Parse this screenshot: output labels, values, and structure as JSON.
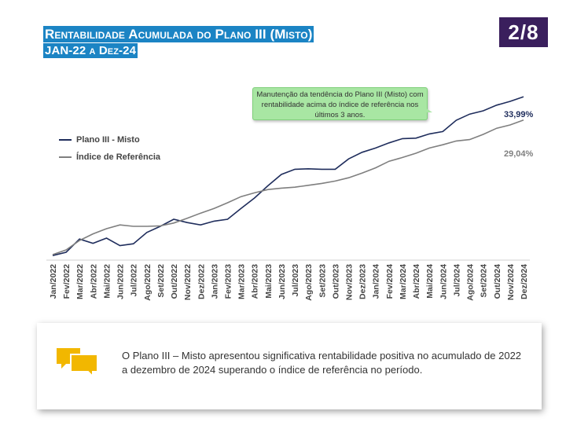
{
  "header": {
    "title": "Rentabilidade Acumulada do Plano III (Misto)",
    "subtitle": "JAN-22 a Dez-24",
    "page_indicator": "2/8"
  },
  "callout": {
    "text": "Manutenção da tendência do Plano III (Misto) com rentabilidade acima do índice de referência nos últimos 3 anos."
  },
  "summary": {
    "text": "O Plano III – Misto apresentou significativa rentabilidade positiva no acumulado de 2022 a dezembro de 2024 superando o índice de referência no período.",
    "icon": "chat-bubbles-icon"
  },
  "colors": {
    "accent_title": "#1b84c4",
    "badge": "#3a1f5d",
    "plano": "#1f2d5c",
    "indice": "#7f7f7f",
    "callout": "#a8e6a3",
    "icon": "#f2b700"
  },
  "chart_data": {
    "type": "line",
    "categories": [
      "Jan/2022",
      "Fev/2022",
      "Mar/2022",
      "Abr/2022",
      "Mai/2022",
      "Jun/2022",
      "Jul/2022",
      "Ago/2022",
      "Set/2022",
      "Out/2022",
      "Nov/2022",
      "Dez/2022",
      "Jan/2023",
      "Fev/2023",
      "Mar/2023",
      "Abr/2023",
      "Mai/2023",
      "Jun/2023",
      "Jul/2023",
      "Ago/2023",
      "Set/2023",
      "Out/2023",
      "Nov/2023",
      "Dez/2023",
      "Jan/2024",
      "Fev/2024",
      "Mar/2024",
      "Abr/2024",
      "Mai/2024",
      "Jun/2024",
      "Jul/2024",
      "Ago/2024",
      "Set/2024",
      "Out/2024",
      "Nov/2024",
      "Dez/2024"
    ],
    "series": [
      {
        "name": "Plano III - Misto",
        "values": [
          0.3,
          1.0,
          3.8,
          2.9,
          4.0,
          2.4,
          2.8,
          5.2,
          6.5,
          8.0,
          7.3,
          6.8,
          7.6,
          8.0,
          10.3,
          12.5,
          15.1,
          17.5,
          18.6,
          18.7,
          18.6,
          18.6,
          20.8,
          22.2,
          23.1,
          24.2,
          25.1,
          25.2,
          26.1,
          26.6,
          29.0,
          30.3,
          31.0,
          32.2,
          33.0,
          33.99
        ],
        "end_label": "33,99%"
      },
      {
        "name": "Índice de Referência",
        "values": [
          0.5,
          1.5,
          3.5,
          4.9,
          6.0,
          6.8,
          6.5,
          6.5,
          6.6,
          7.2,
          8.2,
          9.3,
          10.3,
          11.5,
          12.8,
          13.6,
          14.3,
          14.6,
          14.8,
          15.2,
          15.6,
          16.1,
          16.8,
          17.8,
          18.9,
          20.3,
          21.1,
          22.0,
          23.1,
          23.8,
          24.6,
          24.9,
          26.0,
          27.3,
          28.0,
          29.04
        ],
        "end_label": "29,04%"
      }
    ],
    "legend_position": "left",
    "grid": false,
    "ylim": [
      0,
      36
    ]
  }
}
